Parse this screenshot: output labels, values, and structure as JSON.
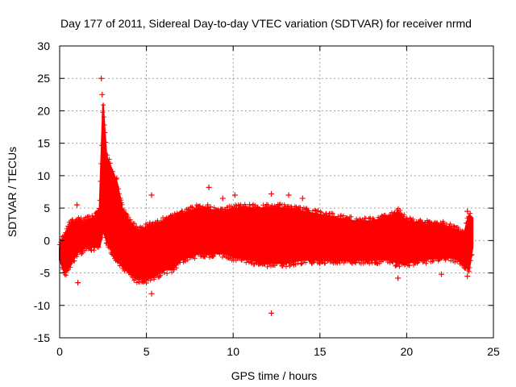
{
  "chart_data": {
    "type": "scatter",
    "title": "Day 177 of 2011, Sidereal Day-to-day VTEC variation (SDTVAR) for receiver nrmd",
    "xlabel": "GPS time / hours",
    "ylabel": "SDTVAR / TECUs",
    "xlim": [
      0,
      25
    ],
    "ylim": [
      -15,
      30
    ],
    "xticks": [
      "0",
      "5",
      "10",
      "15",
      "20",
      "25"
    ],
    "yticks": [
      "-15",
      "-10",
      "-5",
      "0",
      "5",
      "10",
      "15",
      "20",
      "25",
      "30"
    ],
    "grid": true,
    "marker": "plus",
    "color": "#ff0000",
    "series": [
      {
        "name": "SDTVAR",
        "envelope": {
          "x": [
            0.0,
            0.3,
            0.6,
            1.0,
            1.5,
            2.0,
            2.3,
            2.5,
            2.7,
            3.0,
            3.3,
            3.6,
            4.0,
            4.5,
            5.0,
            5.5,
            6.0,
            6.5,
            7.0,
            7.5,
            8.0,
            8.5,
            9.0,
            9.5,
            10.0,
            11.0,
            12.0,
            13.0,
            14.0,
            15.0,
            16.0,
            17.0,
            18.0,
            19.0,
            19.5,
            20.0,
            21.0,
            22.0,
            22.5,
            23.0,
            23.3,
            23.6,
            23.8
          ],
          "upper": [
            -1.0,
            1.0,
            2.5,
            3.0,
            3.0,
            3.5,
            5.0,
            21.0,
            13.0,
            11.0,
            9.0,
            5.0,
            3.0,
            1.5,
            2.0,
            2.5,
            3.0,
            3.5,
            4.0,
            4.5,
            5.0,
            5.0,
            4.5,
            4.5,
            5.0,
            5.0,
            5.0,
            5.0,
            4.5,
            4.0,
            3.5,
            3.0,
            3.0,
            3.5,
            4.5,
            3.0,
            2.5,
            2.5,
            2.0,
            1.5,
            1.0,
            4.0,
            3.5
          ],
          "lower": [
            -3.0,
            -5.0,
            -4.0,
            -2.0,
            -1.0,
            -1.0,
            -1.0,
            1.5,
            0.0,
            -1.5,
            -3.0,
            -4.0,
            -5.0,
            -6.0,
            -6.0,
            -5.5,
            -4.5,
            -4.5,
            -3.0,
            -2.5,
            -2.0,
            -2.0,
            -2.0,
            -2.0,
            -2.5,
            -3.0,
            -3.5,
            -3.5,
            -3.0,
            -3.0,
            -3.0,
            -3.0,
            -3.0,
            -3.0,
            -3.5,
            -3.5,
            -3.0,
            -2.5,
            -2.5,
            -3.0,
            -4.0,
            -4.5,
            -1.0
          ]
        },
        "outliers": [
          {
            "x": 2.4,
            "y": 25.0
          },
          {
            "x": 2.45,
            "y": 22.5
          },
          {
            "x": 1.0,
            "y": 5.5
          },
          {
            "x": 1.05,
            "y": -6.5
          },
          {
            "x": 5.3,
            "y": 7.0
          },
          {
            "x": 5.3,
            "y": -8.2
          },
          {
            "x": 8.6,
            "y": 8.2
          },
          {
            "x": 9.4,
            "y": 6.5
          },
          {
            "x": 10.1,
            "y": 7.0
          },
          {
            "x": 12.2,
            "y": 7.2
          },
          {
            "x": 12.2,
            "y": -11.2
          },
          {
            "x": 13.2,
            "y": 7.0
          },
          {
            "x": 14.0,
            "y": 6.5
          },
          {
            "x": 19.5,
            "y": -5.8
          },
          {
            "x": 22.0,
            "y": -5.2
          },
          {
            "x": 23.5,
            "y": 4.5
          },
          {
            "x": 23.5,
            "y": -5.5
          }
        ]
      }
    ]
  }
}
